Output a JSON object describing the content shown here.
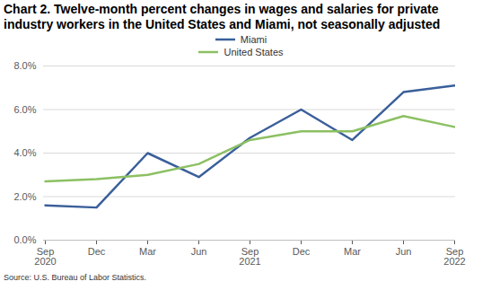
{
  "chart_data": {
    "type": "line",
    "title": "Chart 2. Twelve-month percent changes in wages and salaries for private industry workers in the United States and Miami, not seasonally adjusted",
    "source": "Source: U.S. Bureau of Labor Statistics.",
    "categories": [
      "Sep\n2020",
      "Dec",
      "Mar",
      "Jun",
      "Sep\n2021",
      "Dec",
      "Mar",
      "Jun",
      "Sep\n2022"
    ],
    "series": [
      {
        "name": "Miami",
        "color": "#3a5f9a",
        "values": [
          1.6,
          1.5,
          4.0,
          2.9,
          4.7,
          6.0,
          4.6,
          6.8,
          7.1
        ]
      },
      {
        "name": "United States",
        "color": "#8cc063",
        "values": [
          2.7,
          2.8,
          3.0,
          3.5,
          4.6,
          5.0,
          5.0,
          5.7,
          5.2
        ]
      }
    ],
    "ylim": [
      0,
      8
    ],
    "yticks": [
      {
        "value": 0,
        "label": "0.0%"
      },
      {
        "value": 2,
        "label": "2.0%"
      },
      {
        "value": 4,
        "label": "4.0%"
      },
      {
        "value": 6,
        "label": "6.0%"
      },
      {
        "value": 8,
        "label": "8.0%"
      }
    ],
    "grid": true,
    "legend": "top"
  }
}
